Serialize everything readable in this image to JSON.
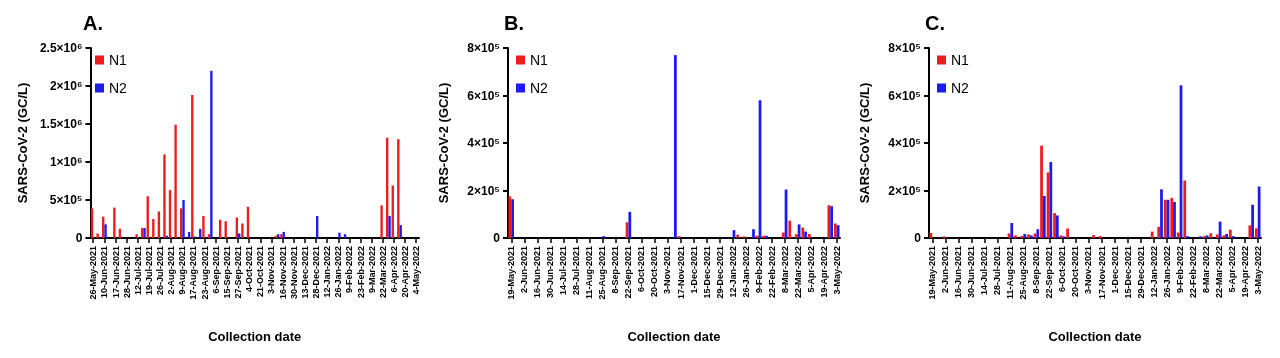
{
  "chart_data": [
    {
      "type": "bar",
      "title": "A.",
      "xlabel": "Collection date",
      "ylabel": "SARS-CoV-2 (GC/L)",
      "legend": "top left",
      "grid": false,
      "categories": [
        "26-May-2021",
        null,
        "10-Jun-2021",
        null,
        "17-Jun-2021",
        null,
        "28-Jun-2021",
        null,
        "12-Jul-2021",
        null,
        "19-Jul-2021",
        null,
        "26-Jul-2021",
        null,
        "2-Aug-2021",
        null,
        "9-Aug-2021",
        null,
        "17-Aug-2021",
        null,
        "23-Aug-2021",
        null,
        "6-Sep-2021",
        null,
        "15-Sep-2021",
        null,
        "27-Sep-2021",
        null,
        "4-Oct-2021",
        null,
        "21-Oct-2021",
        null,
        "3-Nov-2021",
        null,
        "16-Nov-2021",
        null,
        "30-Nov-2021",
        null,
        "13-Dec-2021",
        null,
        "28-Dec-2021",
        null,
        "12-Jan-2022",
        null,
        "26-Jan-2022",
        null,
        "9-Feb-2022",
        null,
        "23-Feb-2022",
        null,
        "9-Mar-2022",
        null,
        "22-Mar-2022",
        null,
        "6-Apr-2022",
        null,
        "20-Apr-2022",
        null,
        "4-May-2022"
      ],
      "ylim": [
        0,
        2500000
      ],
      "yticks": [
        {
          "value": 0,
          "label": "0"
        },
        {
          "value": 500000,
          "label": "5×10⁵"
        },
        {
          "value": 1000000,
          "label": "1×10⁶"
        },
        {
          "value": 1500000,
          "label": "1.5×10⁶"
        },
        {
          "value": 2000000,
          "label": "2×10⁶"
        },
        {
          "value": 2500000,
          "label": "2.5×10⁶"
        }
      ],
      "series": [
        {
          "name": "N1",
          "color": "#ee1c1c",
          "values": [
            390000,
            60000,
            280000,
            null,
            400000,
            120000,
            null,
            null,
            50000,
            130000,
            550000,
            250000,
            350000,
            1100000,
            630000,
            1490000,
            390000,
            null,
            1880000,
            null,
            290000,
            50000,
            null,
            240000,
            220000,
            null,
            270000,
            190000,
            410000,
            null,
            null,
            null,
            null,
            30000,
            50000,
            null,
            null,
            null,
            null,
            null,
            null,
            null,
            null,
            null,
            null,
            null,
            null,
            null,
            null,
            null,
            null,
            null,
            430000,
            1320000,
            690000,
            1300000,
            null,
            null,
            null
          ]
        },
        {
          "name": "N2",
          "color": "#1c1cee",
          "values": [
            null,
            null,
            180000,
            null,
            null,
            null,
            null,
            null,
            null,
            130000,
            null,
            null,
            null,
            30000,
            null,
            null,
            500000,
            80000,
            20000,
            120000,
            null,
            2200000,
            null,
            null,
            null,
            null,
            60000,
            null,
            null,
            null,
            null,
            null,
            null,
            50000,
            80000,
            null,
            null,
            null,
            null,
            null,
            290000,
            null,
            null,
            null,
            70000,
            50000,
            null,
            null,
            null,
            null,
            null,
            null,
            null,
            290000,
            null,
            170000,
            null,
            null,
            null
          ]
        }
      ]
    },
    {
      "type": "bar",
      "title": "B.",
      "xlabel": "Collection date",
      "ylabel": "SARS-CoV-2 (GC/L)",
      "legend": "top left",
      "grid": false,
      "categories": [
        "19-May-2021",
        null,
        "2-Jun-2021",
        null,
        "16-Jun-2021",
        null,
        "30-Jun-2021",
        null,
        "14-Jul-2021",
        null,
        "28-Jul-2021",
        null,
        "11-Aug-2021",
        null,
        "25-Aug-2021",
        null,
        "8-Sep-2021",
        null,
        "22-Sep-2021",
        null,
        "6-Oct-2021",
        null,
        "20-Oct-2021",
        null,
        "3-Nov-2021",
        null,
        "17-Nov-2021",
        null,
        "1-Dec-2021",
        null,
        "15-Dec-2021",
        null,
        "29-Dec-2021",
        null,
        "12-Jan-2022",
        null,
        "26-Jan-2022",
        null,
        "9-Feb-2022",
        null,
        "22-Feb-2022",
        null,
        "8-Mar-2022",
        null,
        "22-Mar-2022",
        null,
        "5-Apr-2022",
        null,
        "19-Apr-2022",
        null,
        "3-May-2022"
      ],
      "ylim": [
        0,
        800000
      ],
      "yticks": [
        0,
        {
          "value": 200000,
          "label": "2×10⁵"
        },
        {
          "value": 400000,
          "label": "4×10⁵"
        },
        {
          "value": 600000,
          "label": "6×10⁵"
        },
        {
          "value": 800000,
          "label": "8×10⁵"
        }
      ],
      "series": [
        {
          "name": "N1",
          "color": "#ee1c1c",
          "values": [
            175000,
            null,
            null,
            null,
            null,
            null,
            null,
            null,
            null,
            null,
            null,
            null,
            null,
            null,
            null,
            null,
            null,
            null,
            66000,
            null,
            null,
            null,
            null,
            null,
            null,
            null,
            8000,
            null,
            null,
            null,
            null,
            null,
            null,
            null,
            null,
            14000,
            7000,
            null,
            10000,
            10000,
            null,
            null,
            23000,
            73000,
            16000,
            44000,
            17000,
            null,
            null,
            138000,
            61000
          ]
        },
        {
          "name": "N2",
          "color": "#1c1cee",
          "values": [
            163000,
            null,
            null,
            null,
            null,
            null,
            null,
            null,
            null,
            null,
            null,
            null,
            null,
            null,
            8000,
            null,
            null,
            null,
            110000,
            null,
            null,
            null,
            null,
            null,
            null,
            770000,
            null,
            null,
            null,
            null,
            null,
            null,
            null,
            null,
            33000,
            null,
            null,
            37000,
            580000,
            9000,
            null,
            null,
            204000,
            null,
            57000,
            27000,
            null,
            null,
            null,
            134000,
            54000
          ]
        }
      ]
    },
    {
      "type": "bar",
      "title": "C.",
      "xlabel": "Collection date",
      "ylabel": "SARS-CoV-2 (GC/L)",
      "legend": "top left",
      "grid": false,
      "categories": [
        "19-May-2021",
        null,
        "2-Jun-2021",
        null,
        "16-Jun-2021",
        null,
        "30-Jun-2021",
        null,
        "14-Jul-2021",
        null,
        "28-Jul-2021",
        null,
        "11-Aug-2021",
        null,
        "25-Aug-2021",
        null,
        "8-Sep-2021",
        null,
        "22-Sep-2021",
        null,
        "6-Oct-2021",
        null,
        "20-Oct-2021",
        null,
        "3-Nov-2021",
        null,
        "17-Nov-2021",
        null,
        "1-Dec-2021",
        null,
        "15-Dec-2021",
        null,
        "29-Dec-2021",
        null,
        "12-Jan-2022",
        null,
        "26-Jan-2022",
        null,
        "9-Feb-2022",
        null,
        "22-Feb-2022",
        null,
        "8-Mar-2022",
        null,
        "22-Mar-2022",
        null,
        "5-Apr-2022",
        null,
        "19-Apr-2022",
        null,
        "3-May-2022"
      ],
      "ylim": [
        0,
        800000
      ],
      "yticks": [
        0,
        {
          "value": 200000,
          "label": "2×10⁵"
        },
        {
          "value": 400000,
          "label": "4×10⁵"
        },
        {
          "value": 600000,
          "label": "6×10⁵"
        },
        {
          "value": 800000,
          "label": "8×10⁵"
        }
      ],
      "series": [
        {
          "name": "N1",
          "color": "#ee1c1c",
          "values": [
            21000,
            null,
            7000,
            null,
            null,
            null,
            null,
            null,
            null,
            null,
            null,
            null,
            19000,
            11000,
            9000,
            15000,
            19000,
            389000,
            276000,
            105000,
            11000,
            40000,
            null,
            null,
            null,
            12000,
            8000,
            null,
            null,
            null,
            null,
            null,
            null,
            null,
            27000,
            47000,
            161000,
            169000,
            23000,
            242000,
            null,
            null,
            8000,
            20000,
            15000,
            11000,
            35000,
            null,
            null,
            53000,
            41000
          ]
        },
        {
          "name": "N2",
          "color": "#1c1cee",
          "values": [
            null,
            null,
            null,
            null,
            null,
            null,
            null,
            null,
            null,
            null,
            null,
            null,
            63000,
            null,
            17000,
            11000,
            37000,
            177000,
            320000,
            95000,
            7000,
            null,
            null,
            null,
            null,
            null,
            null,
            null,
            null,
            null,
            null,
            null,
            null,
            null,
            null,
            205000,
            161000,
            152000,
            643000,
            8000,
            null,
            7000,
            11000,
            null,
            69000,
            17000,
            8000,
            null,
            null,
            140000,
            217000
          ]
        }
      ]
    }
  ]
}
